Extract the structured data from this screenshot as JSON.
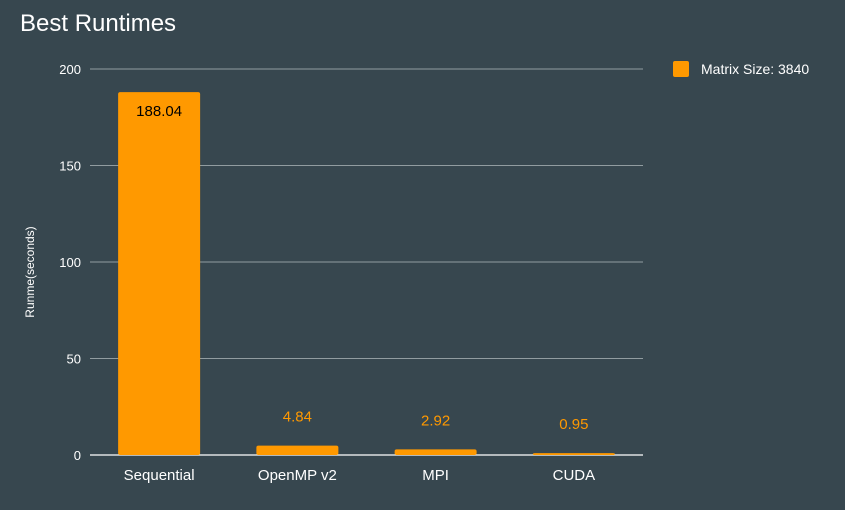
{
  "chart_data": {
    "type": "bar",
    "title": "Best Runtimes",
    "xlabel": "",
    "ylabel": "Runme(seconds)",
    "categories": [
      "Sequential",
      "OpenMP v2",
      "MPI",
      "CUDA"
    ],
    "series": [
      {
        "name": "Matrix Size: 3840",
        "values": [
          188.04,
          4.84,
          2.92,
          0.95
        ],
        "labels": [
          "188.04",
          "4.84",
          "2.92",
          "0.95"
        ],
        "color": "#ff9900"
      }
    ],
    "ylim": [
      0,
      200
    ],
    "yticks": [
      0,
      50,
      100,
      150,
      200
    ],
    "grid": true,
    "legend_position": "top-right"
  },
  "colors": {
    "background": "#37474f",
    "grid": "#b0b8bb",
    "text": "#ffffff",
    "bar": "#ff9900",
    "label_inside": "#000000"
  }
}
